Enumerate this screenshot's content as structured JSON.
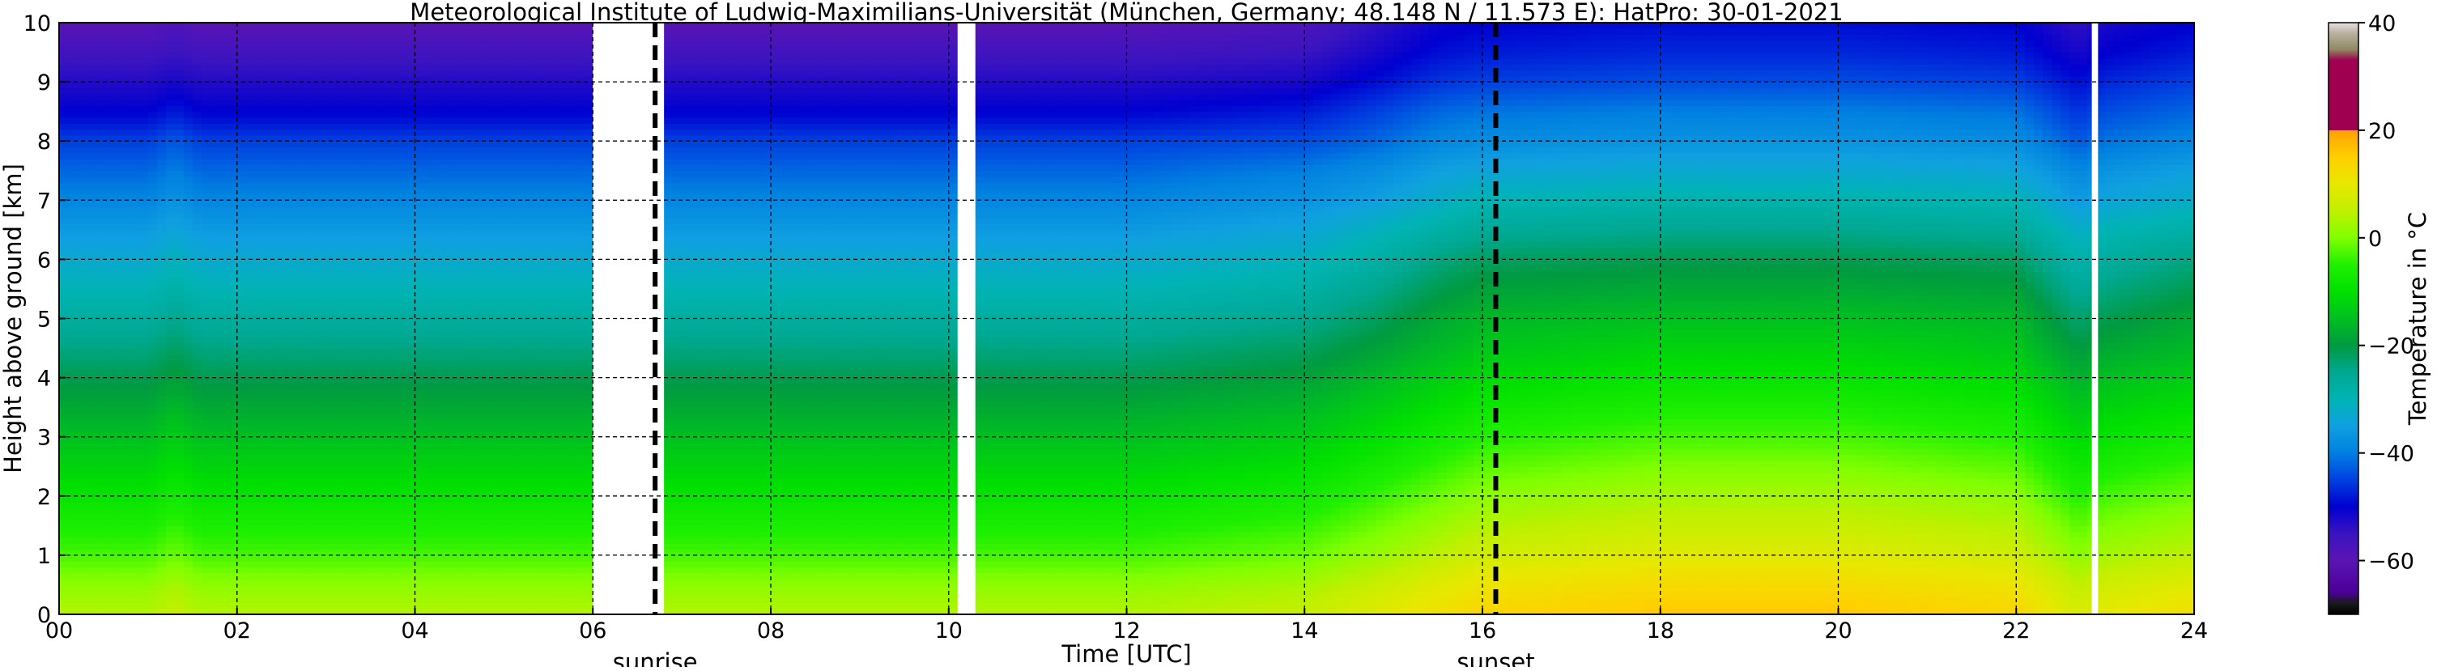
{
  "chart_data": {
    "type": "heatmap",
    "title": "Meteorological Institute of Ludwig-Maximilians-Universität (München, Germany; 48.148 N / 11.573 E):    HatPro: 30-01-2021",
    "xlabel": "Time [UTC]",
    "ylabel": "Height above ground [km]",
    "xlim": [
      0,
      24
    ],
    "ylim": [
      0,
      10
    ],
    "x_ticks": [
      "00",
      "02",
      "04",
      "06",
      "08",
      "10",
      "12",
      "14",
      "16",
      "18",
      "20",
      "22",
      "24"
    ],
    "y_ticks": [
      "0",
      "1",
      "2",
      "3",
      "4",
      "5",
      "6",
      "7",
      "8",
      "9",
      "10"
    ],
    "grid": true,
    "colorbar": {
      "label": "Temperature in °C",
      "range": [
        -70,
        40
      ],
      "ticks": [
        "40",
        "20",
        "0",
        "−20",
        "−40",
        "−60"
      ],
      "tick_values": [
        40,
        20,
        0,
        -20,
        -40,
        -60
      ],
      "stops": [
        {
          "value": -70,
          "color": "#000000"
        },
        {
          "value": -68,
          "color": "#1a1a1a"
        },
        {
          "value": -66,
          "color": "#4b0096"
        },
        {
          "value": -60,
          "color": "#5a14b4"
        },
        {
          "value": -55,
          "color": "#3a14c0"
        },
        {
          "value": -50,
          "color": "#0000d0"
        },
        {
          "value": -45,
          "color": "#0040e0"
        },
        {
          "value": -40,
          "color": "#0080e0"
        },
        {
          "value": -35,
          "color": "#10a0e0"
        },
        {
          "value": -30,
          "color": "#00b4b4"
        },
        {
          "value": -25,
          "color": "#00a890"
        },
        {
          "value": -20,
          "color": "#009a40"
        },
        {
          "value": -15,
          "color": "#00c020"
        },
        {
          "value": -10,
          "color": "#00e000"
        },
        {
          "value": -5,
          "color": "#20f000"
        },
        {
          "value": 0,
          "color": "#80ff00"
        },
        {
          "value": 5,
          "color": "#c0f000"
        },
        {
          "value": 10,
          "color": "#e8e800"
        },
        {
          "value": 15,
          "color": "#ffd000"
        },
        {
          "value": 20,
          "color": "#ffa000"
        },
        {
          "value": 20,
          "color": "#a00050"
        },
        {
          "value": 33,
          "color": "#a00050"
        },
        {
          "value": 35,
          "color": "#908860"
        },
        {
          "value": 38,
          "color": "#b8b0a0"
        },
        {
          "value": 40,
          "color": "#e8e0e0"
        }
      ]
    },
    "time_columns": [
      0,
      1,
      1.3,
      1.6,
      2,
      4,
      6,
      6.7,
      8,
      10.2,
      12,
      14,
      14.8,
      15.5,
      16,
      18,
      20,
      22,
      22.7,
      23,
      24
    ],
    "height_rows": [
      0,
      0.5,
      1,
      1.5,
      2,
      2.5,
      3,
      3.5,
      4,
      4.5,
      5,
      5.5,
      6,
      6.5,
      7,
      7.5,
      8,
      8.5,
      9,
      9.5,
      10
    ],
    "temperature_grid_note_rows_are_heights_columns_are_times": "values in °C",
    "temperature_grid": [
      [
        4,
        4,
        6,
        4,
        4,
        4,
        4,
        4,
        4,
        4,
        4,
        6,
        9,
        12,
        14,
        16,
        16,
        14,
        8,
        10,
        12
      ],
      [
        1,
        1,
        3,
        1,
        1,
        1,
        1,
        1,
        1,
        1,
        1,
        3,
        6,
        9,
        11,
        13,
        13,
        11,
        5,
        7,
        9
      ],
      [
        -3,
        -3,
        -1,
        -3,
        -3,
        -3,
        -3,
        -3,
        -3,
        -3,
        -3,
        -1,
        2,
        5,
        7,
        9,
        9,
        7,
        1,
        3,
        5
      ],
      [
        -6,
        -6,
        -4,
        -6,
        -6,
        -6,
        -6,
        -6,
        -6,
        -6,
        -6,
        -4,
        -1,
        2,
        4,
        6,
        6,
        4,
        -2,
        0,
        2
      ],
      [
        -9,
        -9,
        -7,
        -9,
        -9,
        -9,
        -9,
        -9,
        -9,
        -9,
        -9,
        -7,
        -4,
        -1,
        1,
        3,
        3,
        1,
        -5,
        -3,
        -1
      ],
      [
        -12,
        -12,
        -10,
        -12,
        -12,
        -12,
        -12,
        -12,
        -12,
        -12,
        -12,
        -10,
        -7,
        -4,
        -2,
        0,
        0,
        -2,
        -8,
        -6,
        -4
      ],
      [
        -15,
        -15,
        -13,
        -15,
        -15,
        -15,
        -15,
        -15,
        -15,
        -15,
        -15,
        -13,
        -10,
        -7,
        -5,
        -3,
        -3,
        -5,
        -11,
        -9,
        -7
      ],
      [
        -18,
        -18,
        -16,
        -18,
        -18,
        -18,
        -18,
        -18,
        -18,
        -18,
        -18,
        -16,
        -13,
        -10,
        -8,
        -6,
        -6,
        -8,
        -14,
        -12,
        -10
      ],
      [
        -21,
        -21,
        -19,
        -21,
        -21,
        -21,
        -21,
        -21,
        -21,
        -21,
        -21,
        -19,
        -16,
        -13,
        -11,
        -9,
        -9,
        -11,
        -17,
        -15,
        -13
      ],
      [
        -24,
        -24,
        -22,
        -24,
        -24,
        -24,
        -24,
        -24,
        -24,
        -24,
        -24,
        -22,
        -19,
        -16,
        -14,
        -12,
        -12,
        -14,
        -20,
        -18,
        -16
      ],
      [
        -27,
        -27,
        -25,
        -27,
        -27,
        -27,
        -27,
        -27,
        -27,
        -27,
        -27,
        -25,
        -22,
        -18,
        -16,
        -15,
        -15,
        -16,
        -23,
        -21,
        -18
      ],
      [
        -30,
        -30,
        -28,
        -30,
        -30,
        -30,
        -30,
        -30,
        -30,
        -30,
        -30,
        -28,
        -25,
        -21,
        -19,
        -18,
        -18,
        -19,
        -26,
        -24,
        -21
      ],
      [
        -33,
        -33,
        -31,
        -33,
        -33,
        -33,
        -33,
        -33,
        -33,
        -33,
        -33,
        -31,
        -28,
        -24,
        -22,
        -21,
        -21,
        -22,
        -29,
        -27,
        -24
      ],
      [
        -36,
        -36,
        -34,
        -36,
        -36,
        -36,
        -36,
        -36,
        -36,
        -36,
        -36,
        -34,
        -31,
        -28,
        -26,
        -25,
        -25,
        -26,
        -32,
        -30,
        -28
      ],
      [
        -39,
        -39,
        -37,
        -39,
        -39,
        -39,
        -39,
        -39,
        -39,
        -39,
        -39,
        -37,
        -35,
        -32,
        -30,
        -29,
        -29,
        -30,
        -36,
        -34,
        -32
      ],
      [
        -42,
        -42,
        -40,
        -42,
        -42,
        -42,
        -42,
        -42,
        -42,
        -42,
        -42,
        -40,
        -38,
        -35,
        -34,
        -33,
        -33,
        -34,
        -39,
        -37,
        -35
      ],
      [
        -45,
        -45,
        -43,
        -45,
        -45,
        -45,
        -45,
        -45,
        -45,
        -45,
        -45,
        -44,
        -42,
        -39,
        -38,
        -37,
        -37,
        -38,
        -43,
        -41,
        -39
      ],
      [
        -50,
        -50,
        -48,
        -50,
        -50,
        -50,
        -50,
        -50,
        -50,
        -50,
        -50,
        -48,
        -45,
        -42,
        -41,
        -40,
        -40,
        -41,
        -46,
        -44,
        -42
      ],
      [
        -53,
        -53,
        -52,
        -53,
        -53,
        -53,
        -53,
        -53,
        -53,
        -53,
        -53,
        -52,
        -49,
        -46,
        -45,
        -44,
        -44,
        -45,
        -49,
        -47,
        -45
      ],
      [
        -56,
        -56,
        -55,
        -56,
        -56,
        -56,
        -56,
        -56,
        -56,
        -56,
        -56,
        -55,
        -52,
        -49,
        -48,
        -47,
        -47,
        -48,
        -52,
        -50,
        -48
      ],
      [
        -60,
        -60,
        -58,
        -60,
        -60,
        -60,
        -60,
        -60,
        -60,
        -60,
        -60,
        -58,
        -54,
        -51,
        -50,
        -49,
        -49,
        -50,
        -54,
        -52,
        -50
      ]
    ],
    "data_gaps": [
      {
        "from": 6.0,
        "to": 6.8
      },
      {
        "from": 10.1,
        "to": 10.3
      },
      {
        "from": 22.85,
        "to": 22.92
      }
    ],
    "events": [
      {
        "label": "sunrise",
        "time": 6.7
      },
      {
        "label": "sunset",
        "time": 16.15
      }
    ]
  }
}
